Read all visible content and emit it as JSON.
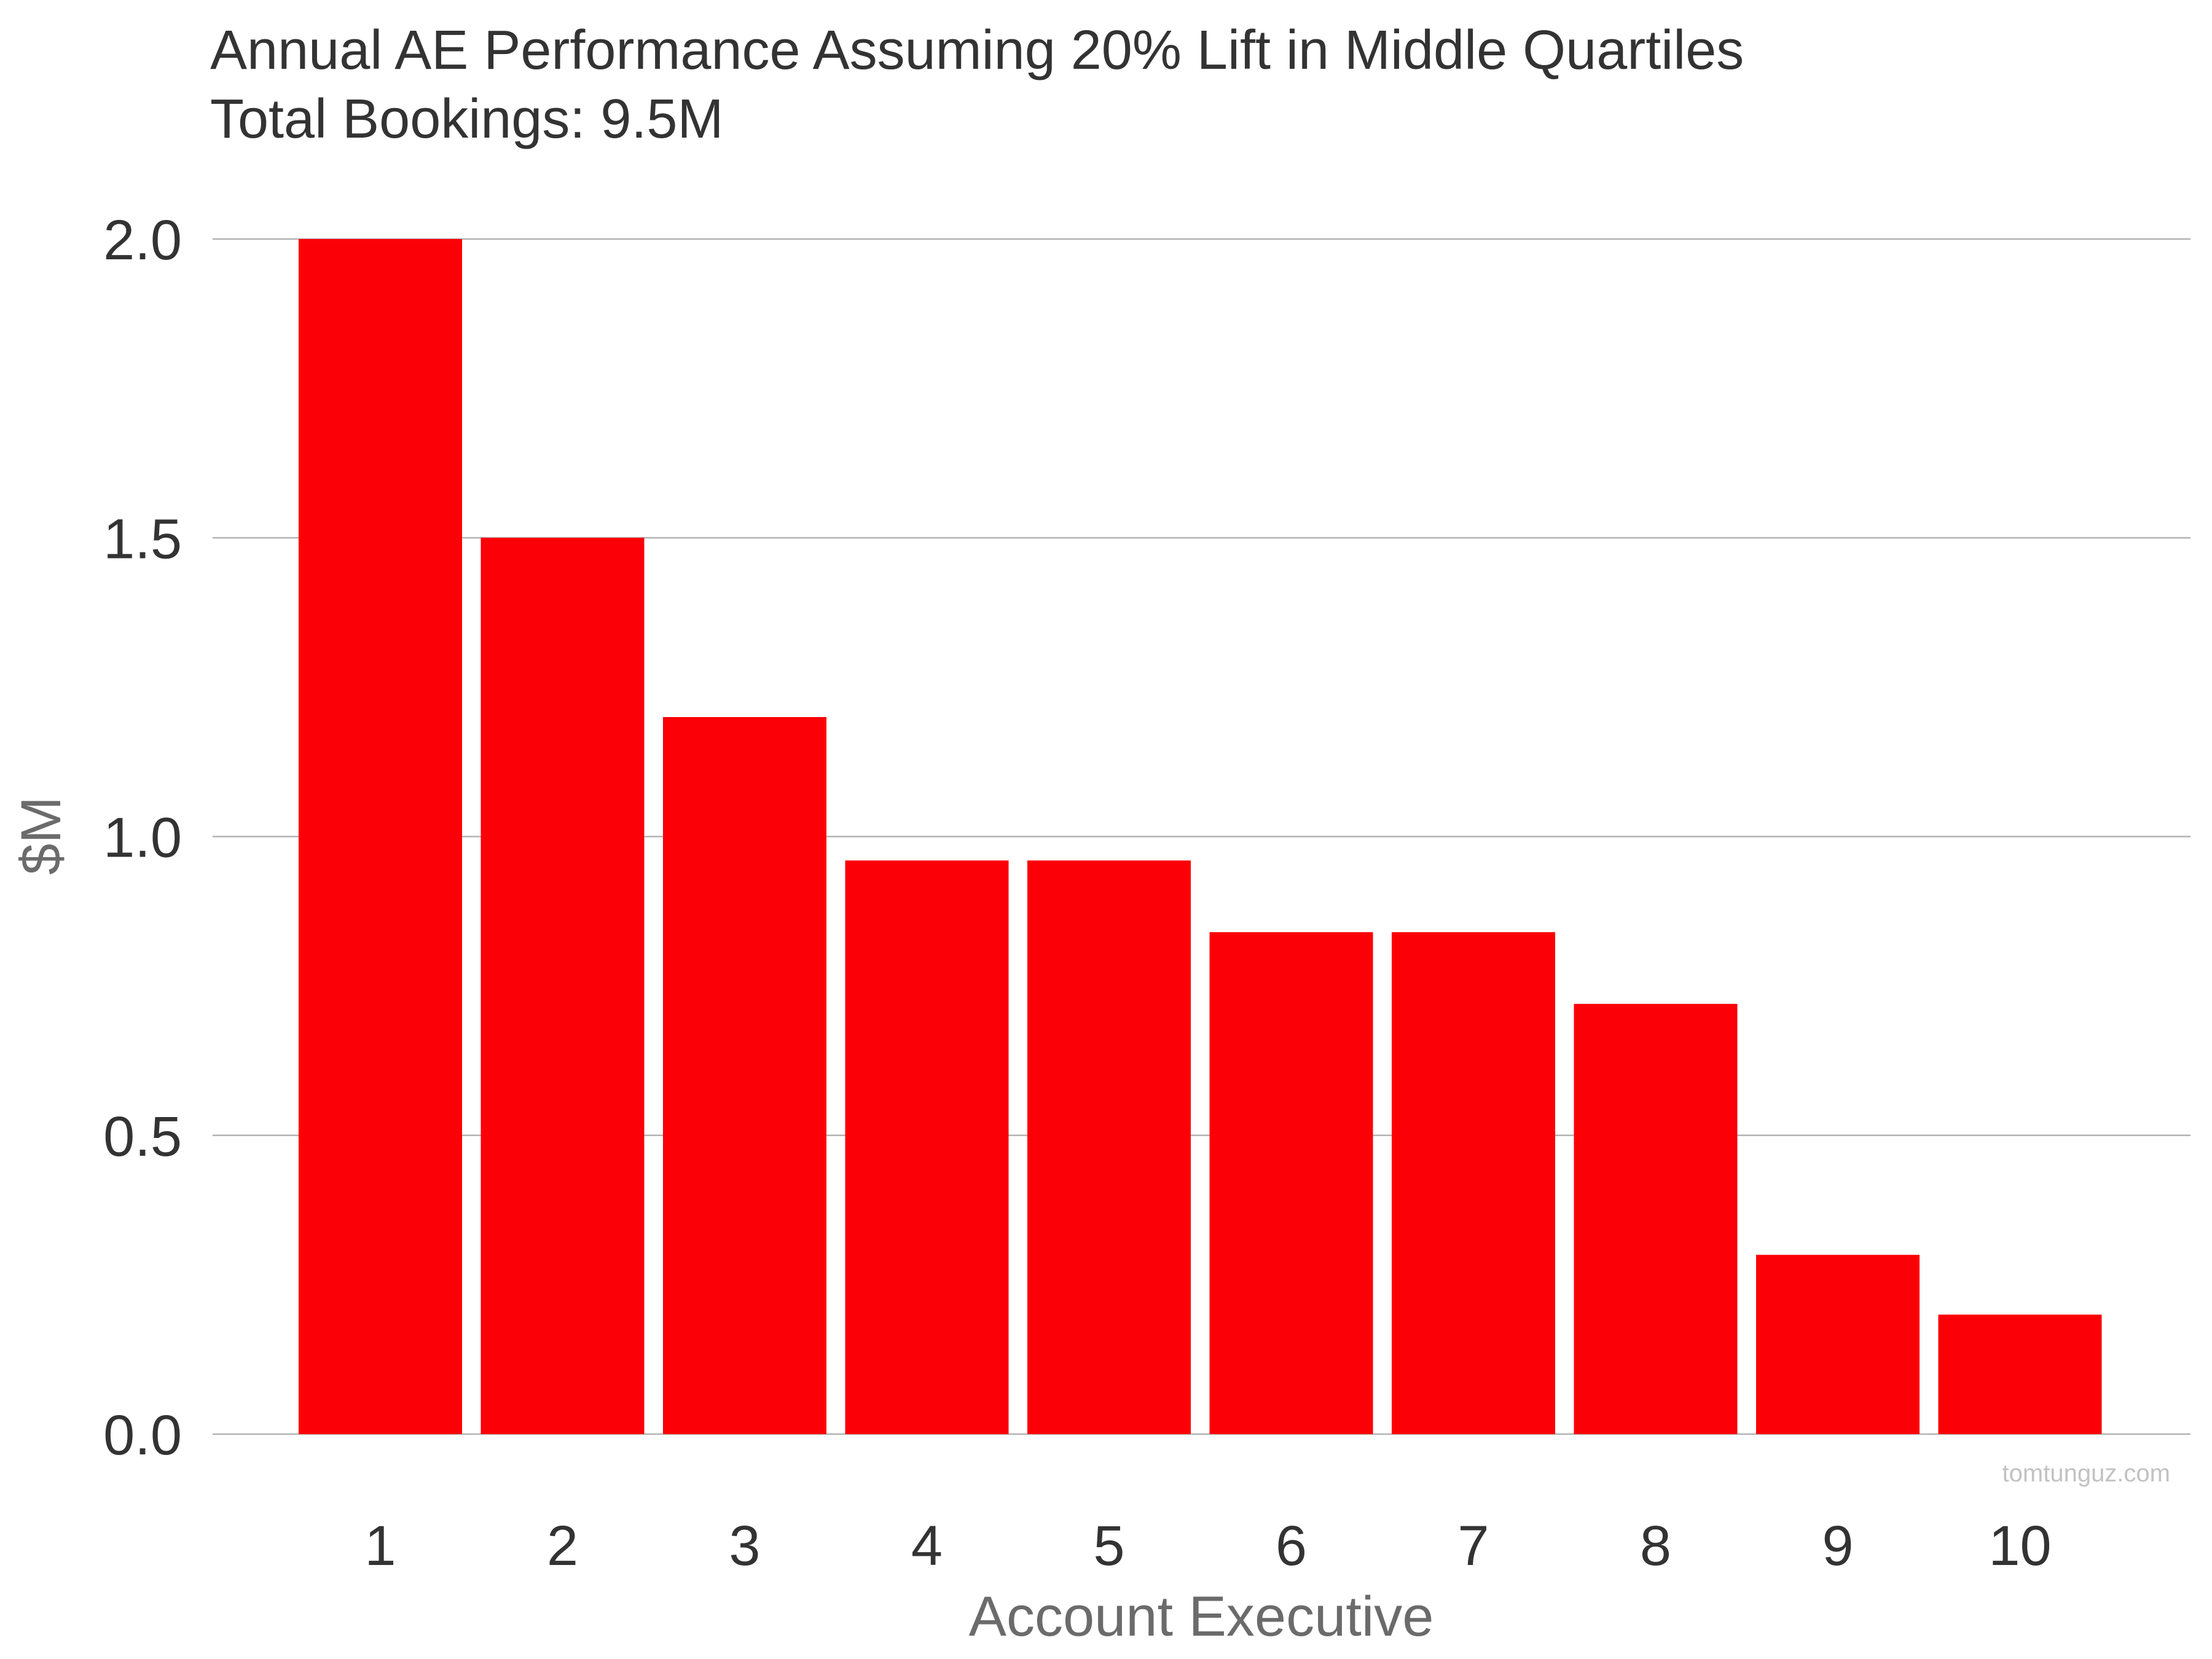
{
  "title_line1": "Annual AE Performance Assuming 20% Lift in Middle Quartiles",
  "title_line2": "Total Bookings: 9.5M",
  "watermark": "tomtunguz.com",
  "colors": {
    "bar": "#fc0007",
    "grid": "#b3b3b3",
    "text": "#333333",
    "axis_label": "#6b6b6b"
  },
  "chart_data": {
    "type": "bar",
    "title": "Annual AE Performance Assuming 20% Lift in Middle Quartiles",
    "subtitle": "Total Bookings: 9.5M",
    "xlabel": "Account Executive",
    "ylabel": "$M",
    "categories": [
      "1",
      "2",
      "3",
      "4",
      "5",
      "6",
      "7",
      "8",
      "9",
      "10"
    ],
    "values": [
      2.0,
      1.5,
      1.2,
      0.96,
      0.96,
      0.84,
      0.84,
      0.72,
      0.3,
      0.2
    ],
    "ylim": [
      0,
      2.0
    ],
    "yticks": [
      "0.0",
      "0.5",
      "1.0",
      "1.5",
      "2.0"
    ],
    "ytick_values": [
      0,
      0.5,
      1.0,
      1.5,
      2.0
    ],
    "grid": "horizontal",
    "legend": "none"
  }
}
